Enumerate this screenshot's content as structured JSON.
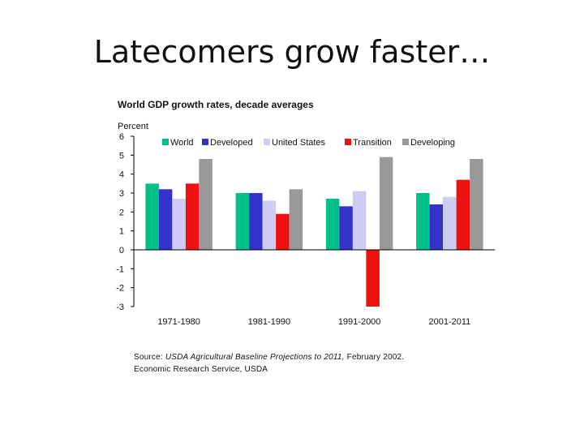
{
  "slide": {
    "title": "Latecomers grow faster…"
  },
  "source": {
    "prefix": "Source: ",
    "publication": "USDA Agricultural Baseline Projections to 2011,",
    "date": " February 2002.",
    "line2": "Economic Research Service, USDA"
  },
  "chart_data": {
    "type": "bar",
    "title": "World GDP growth rates, decade averages",
    "ylabel": "Percent",
    "xlabel": "",
    "categories": [
      "1971-1980",
      "1981-1990",
      "1991-2000",
      "2001-2011"
    ],
    "ylim": [
      -3,
      6
    ],
    "yticks": [
      -3,
      -2,
      -1,
      0,
      1,
      2,
      3,
      4,
      5,
      6
    ],
    "grid": false,
    "legend_position": "top",
    "series": [
      {
        "name": "World",
        "color": "#00c08a",
        "values": [
          3.5,
          3.0,
          2.7,
          3.0
        ]
      },
      {
        "name": "Developed",
        "color": "#3333cc",
        "values": [
          3.2,
          3.0,
          2.3,
          2.4
        ]
      },
      {
        "name": "United States",
        "color": "#ccccf5",
        "values": [
          2.7,
          2.6,
          3.1,
          2.8
        ]
      },
      {
        "name": "Transition",
        "color": "#ee1111",
        "values": [
          3.5,
          1.9,
          -3.0,
          3.7
        ]
      },
      {
        "name": "Developing",
        "color": "#999999",
        "values": [
          4.8,
          3.2,
          4.9,
          4.8
        ]
      }
    ]
  }
}
